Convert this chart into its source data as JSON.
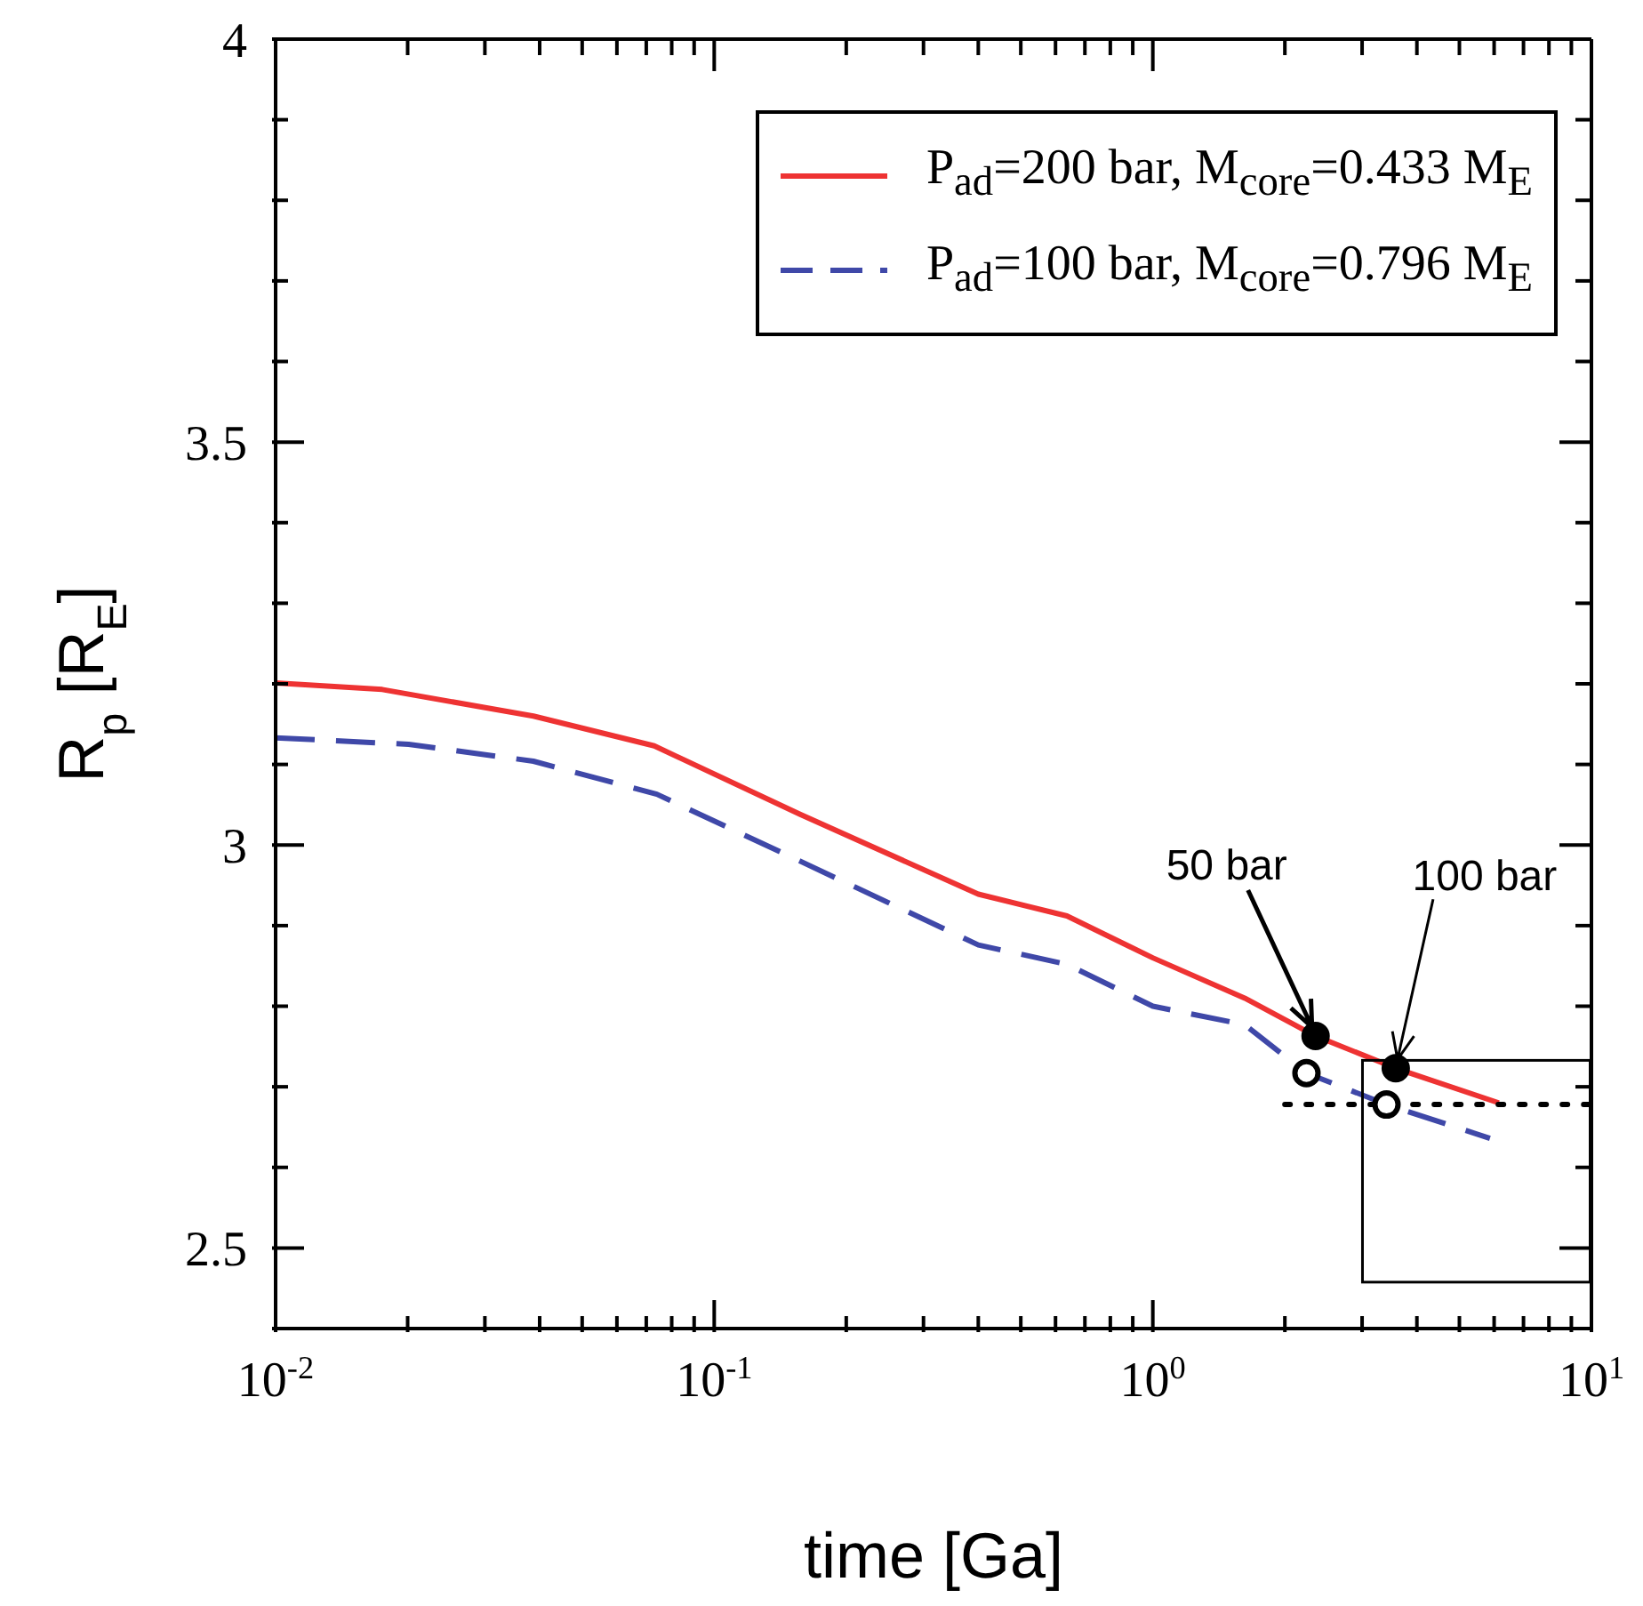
{
  "chart_data": {
    "type": "line",
    "xlabel": "time [Ga]",
    "ylabel": "R$_{p}$ [R$_{E}$]",
    "log": "x",
    "grid": false,
    "legend": "top right",
    "xlim": [
      0.01,
      10
    ],
    "ylim": [
      2.4,
      4
    ],
    "xticks": [
      {
        "value": 0.01,
        "label": "10$^{-2}$"
      },
      {
        "value": 0.02,
        "label": null
      },
      {
        "value": 0.03,
        "label": null
      },
      {
        "value": 0.04,
        "label": null
      },
      {
        "value": 0.05,
        "label": null
      },
      {
        "value": 0.06,
        "label": null
      },
      {
        "value": 0.07,
        "label": null
      },
      {
        "value": 0.08,
        "label": null
      },
      {
        "value": 0.09,
        "label": null
      },
      {
        "value": 0.1,
        "label": "10$^{-1}$"
      },
      {
        "value": 0.2,
        "label": null
      },
      {
        "value": 0.3,
        "label": null
      },
      {
        "value": 0.4,
        "label": null
      },
      {
        "value": 0.5,
        "label": null
      },
      {
        "value": 0.6,
        "label": null
      },
      {
        "value": 0.7,
        "label": null
      },
      {
        "value": 0.8,
        "label": null
      },
      {
        "value": 0.9,
        "label": null
      },
      {
        "value": 1,
        "label": "10$^{0}$"
      },
      {
        "value": 2,
        "label": null
      },
      {
        "value": 3,
        "label": null
      },
      {
        "value": 4,
        "label": null
      },
      {
        "value": 5,
        "label": null
      },
      {
        "value": 6,
        "label": null
      },
      {
        "value": 7,
        "label": null
      },
      {
        "value": 8,
        "label": null
      },
      {
        "value": 9,
        "label": null
      },
      {
        "value": 10,
        "label": "10$^{1}$"
      }
    ],
    "yticks": [
      {
        "value": 2.4,
        "label": null
      },
      2.5,
      {
        "value": 2.6,
        "label": null
      },
      {
        "value": 2.7,
        "label": null
      },
      {
        "value": 2.8,
        "label": null
      },
      {
        "value": 2.9,
        "label": null
      },
      3,
      {
        "value": 3.1,
        "label": null
      },
      {
        "value": 3.2,
        "label": null
      },
      {
        "value": 3.3,
        "label": null
      },
      {
        "value": 3.4,
        "label": null
      },
      3.5,
      {
        "value": 3.6,
        "label": null
      },
      {
        "value": 3.7,
        "label": null
      },
      {
        "value": 3.8,
        "label": null
      },
      {
        "value": 3.9,
        "label": null
      },
      4
    ],
    "series": [
      {
        "name": "P$_{ad}$=200 bar, M$_{core}$=0.433 M$_{E}$",
        "color": "#ee3333",
        "line_style": "solid",
        "x": [
          0.01,
          0.0175,
          0.0387,
          0.073,
          0.157,
          0.4,
          0.637,
          1.0,
          1.62,
          2.35,
          3.58,
          6.15
        ],
        "values": [
          3.201,
          3.193,
          3.16,
          3.123,
          3.038,
          2.939,
          2.912,
          2.86,
          2.81,
          2.763,
          2.723,
          2.68
        ]
      },
      {
        "name": "P$_{ad}$=100 bar, M$_{core}$=0.796 M$_{E}$",
        "color": "#3f48a8",
        "line_style": "dashed",
        "x": [
          0.01,
          0.0201,
          0.0387,
          0.074,
          0.157,
          0.4,
          0.637,
          1.0,
          1.62,
          2.24,
          3.41,
          5.87
        ],
        "values": [
          3.133,
          3.125,
          3.104,
          3.063,
          2.98,
          2.876,
          2.852,
          2.8,
          2.777,
          2.717,
          2.678,
          2.636
        ]
      },
      {
        "type": "line",
        "color": "#000000",
        "line_style": "dotted",
        "x": [
          2,
          10
        ],
        "values": [
          2.678,
          2.678
        ]
      },
      {
        "type": "scatter",
        "color": "#000000",
        "marker": "circle",
        "x": [
          2.35,
          3.58
        ],
        "values": [
          2.763,
          2.723
        ]
      },
      {
        "type": "scatter",
        "color": "#ffffff",
        "marker": "circle",
        "x": [
          2.24,
          3.41
        ],
        "values": [
          2.717,
          2.678
        ]
      }
    ],
    "annotations": [
      {
        "text": "50 bar",
        "x": 2.35,
        "y": 2.763
      },
      {
        "text": "100 bar",
        "x": 3.58,
        "y": 2.723
      }
    ]
  }
}
